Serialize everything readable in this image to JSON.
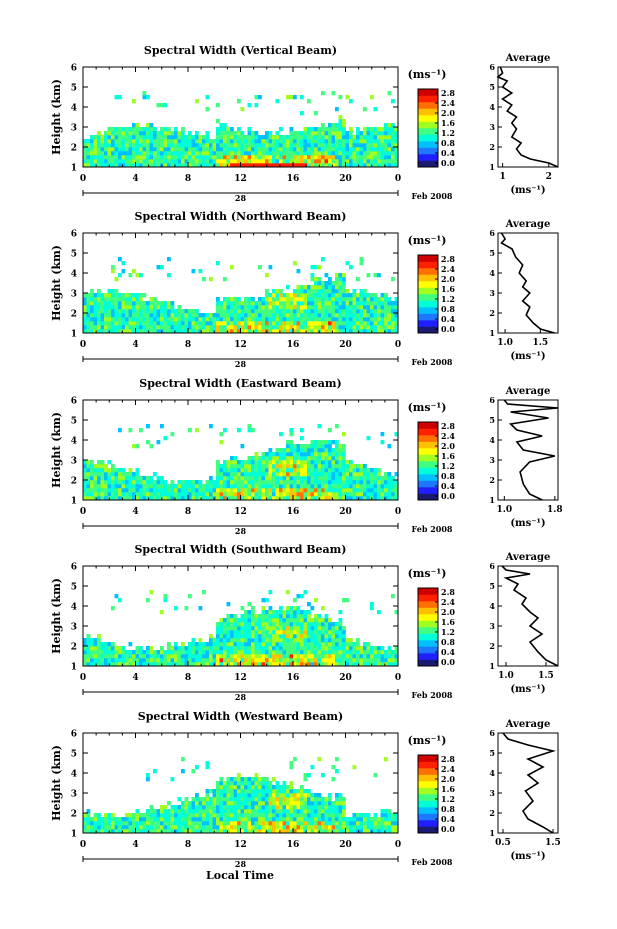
{
  "figure": {
    "bottom_xlabel": "Local Time",
    "date_label": "Feb 2008",
    "day_label": "28"
  },
  "colorbar": {
    "unit_label": "(ms⁻¹)",
    "ticks": [
      "2.8",
      "2.4",
      "2.0",
      "1.6",
      "1.2",
      "0.8",
      "0.4",
      "0.0"
    ],
    "colors": [
      "#1a1a70",
      "#2020ff",
      "#1e78ff",
      "#00c0ff",
      "#00ffd8",
      "#40ff80",
      "#a0ff20",
      "#ffff00",
      "#ffc000",
      "#ff7000",
      "#ff2000",
      "#d00000"
    ]
  },
  "chart_data": [
    {
      "type": "heatmap",
      "title": "Spectral Width (Vertical Beam)",
      "ylabel": "Height (km)",
      "xlabel": "",
      "x_ticks": [
        "0",
        "4",
        "8",
        "12",
        "16",
        "20",
        "0"
      ],
      "xlim": [
        0,
        24
      ],
      "ylim": [
        1,
        6
      ],
      "y_ticks": [
        "1",
        "2",
        "3",
        "4",
        "5",
        "6"
      ],
      "avg": {
        "title": "Average",
        "xlabel": "(ms⁻¹)",
        "x_ticks": [
          "1",
          "2"
        ],
        "xlim": [
          0.9,
          2.2
        ],
        "profile": [
          [
            2.2,
            1.0
          ],
          [
            2.0,
            1.2
          ],
          [
            1.6,
            1.4
          ],
          [
            1.4,
            1.6
          ],
          [
            1.3,
            1.9
          ],
          [
            1.4,
            2.2
          ],
          [
            1.2,
            2.5
          ],
          [
            1.3,
            2.9
          ],
          [
            1.2,
            3.2
          ],
          [
            1.3,
            3.5
          ],
          [
            1.1,
            3.8
          ],
          [
            1.2,
            4.1
          ],
          [
            1.0,
            4.4
          ],
          [
            1.2,
            4.7
          ],
          [
            1.0,
            5.0
          ],
          [
            1.1,
            5.3
          ],
          [
            0.9,
            5.5
          ],
          [
            1.0,
            5.7
          ],
          [
            0.95,
            6.0
          ]
        ]
      }
    },
    {
      "type": "heatmap",
      "title": "Spectral Width (Northward Beam)",
      "ylabel": "Height (km)",
      "xlabel": "",
      "x_ticks": [
        "0",
        "4",
        "8",
        "12",
        "16",
        "20",
        "0"
      ],
      "xlim": [
        0,
        24
      ],
      "ylim": [
        1,
        6
      ],
      "y_ticks": [
        "1",
        "2",
        "3",
        "4",
        "5",
        "6"
      ],
      "avg": {
        "title": "Average",
        "xlabel": "(ms⁻¹)",
        "x_ticks": [
          "1.0",
          "1.5"
        ],
        "xlim": [
          0.9,
          1.75
        ],
        "profile": [
          [
            1.7,
            1.0
          ],
          [
            1.5,
            1.2
          ],
          [
            1.4,
            1.5
          ],
          [
            1.3,
            1.9
          ],
          [
            1.35,
            2.3
          ],
          [
            1.25,
            2.6
          ],
          [
            1.35,
            3.0
          ],
          [
            1.25,
            3.3
          ],
          [
            1.3,
            3.6
          ],
          [
            1.2,
            4.0
          ],
          [
            1.25,
            4.4
          ],
          [
            1.15,
            4.8
          ],
          [
            1.1,
            5.2
          ],
          [
            0.95,
            5.5
          ],
          [
            1.0,
            5.7
          ],
          [
            0.95,
            6.0
          ]
        ]
      }
    },
    {
      "type": "heatmap",
      "title": "Spectral Width (Eastward Beam)",
      "ylabel": "Height (km)",
      "xlabel": "",
      "x_ticks": [
        "0",
        "4",
        "8",
        "12",
        "16",
        "20",
        "0"
      ],
      "xlim": [
        0,
        24
      ],
      "ylim": [
        1,
        6
      ],
      "y_ticks": [
        "1",
        "2",
        "3",
        "4",
        "5",
        "6"
      ],
      "avg": {
        "title": "Average",
        "xlabel": "(ms⁻¹)",
        "x_ticks": [
          "1.0",
          "1.8"
        ],
        "xlim": [
          0.9,
          1.85
        ],
        "profile": [
          [
            1.6,
            1.0
          ],
          [
            1.4,
            1.3
          ],
          [
            1.3,
            1.8
          ],
          [
            1.25,
            2.4
          ],
          [
            1.4,
            2.9
          ],
          [
            1.8,
            3.2
          ],
          [
            1.3,
            3.5
          ],
          [
            1.2,
            3.9
          ],
          [
            1.6,
            4.2
          ],
          [
            1.2,
            4.5
          ],
          [
            1.1,
            4.8
          ],
          [
            1.7,
            5.1
          ],
          [
            1.1,
            5.4
          ],
          [
            1.85,
            5.6
          ],
          [
            1.05,
            5.8
          ],
          [
            1.0,
            6.0
          ]
        ]
      }
    },
    {
      "type": "heatmap",
      "title": "Spectral Width (Southward Beam)",
      "ylabel": "Height (km)",
      "xlabel": "",
      "x_ticks": [
        "0",
        "4",
        "8",
        "12",
        "16",
        "20",
        "0"
      ],
      "xlim": [
        0,
        24
      ],
      "ylim": [
        1,
        6
      ],
      "y_ticks": [
        "1",
        "2",
        "3",
        "4",
        "5",
        "6"
      ],
      "avg": {
        "title": "Average",
        "xlabel": "(ms⁻¹)",
        "x_ticks": [
          "1.0",
          "1.5"
        ],
        "xlim": [
          0.9,
          1.65
        ],
        "profile": [
          [
            1.65,
            1.0
          ],
          [
            1.5,
            1.3
          ],
          [
            1.4,
            1.7
          ],
          [
            1.3,
            2.2
          ],
          [
            1.45,
            2.6
          ],
          [
            1.3,
            3.0
          ],
          [
            1.4,
            3.4
          ],
          [
            1.3,
            3.7
          ],
          [
            1.2,
            4.1
          ],
          [
            1.25,
            4.4
          ],
          [
            1.1,
            4.8
          ],
          [
            1.15,
            5.1
          ],
          [
            1.0,
            5.4
          ],
          [
            1.3,
            5.6
          ],
          [
            1.0,
            5.8
          ],
          [
            0.95,
            6.0
          ]
        ]
      }
    },
    {
      "type": "heatmap",
      "title": "Spectral Width (Westward Beam)",
      "ylabel": "Height (km)",
      "xlabel": "",
      "x_ticks": [
        "0",
        "4",
        "8",
        "12",
        "16",
        "20",
        "0"
      ],
      "xlim": [
        0,
        24
      ],
      "ylim": [
        1,
        6
      ],
      "y_ticks": [
        "1",
        "2",
        "3",
        "4",
        "5",
        "6"
      ],
      "avg": {
        "title": "Average",
        "xlabel": "(ms⁻¹)",
        "x_ticks": [
          "0.5",
          "1.5"
        ],
        "xlim": [
          0.4,
          1.6
        ],
        "profile": [
          [
            1.5,
            1.0
          ],
          [
            1.3,
            1.3
          ],
          [
            1.0,
            1.7
          ],
          [
            0.9,
            2.1
          ],
          [
            1.1,
            2.6
          ],
          [
            0.95,
            3.1
          ],
          [
            1.2,
            3.5
          ],
          [
            1.0,
            3.9
          ],
          [
            1.3,
            4.3
          ],
          [
            1.0,
            4.7
          ],
          [
            1.5,
            5.1
          ],
          [
            1.0,
            5.4
          ],
          [
            0.6,
            5.7
          ],
          [
            0.5,
            6.0
          ]
        ]
      }
    }
  ]
}
